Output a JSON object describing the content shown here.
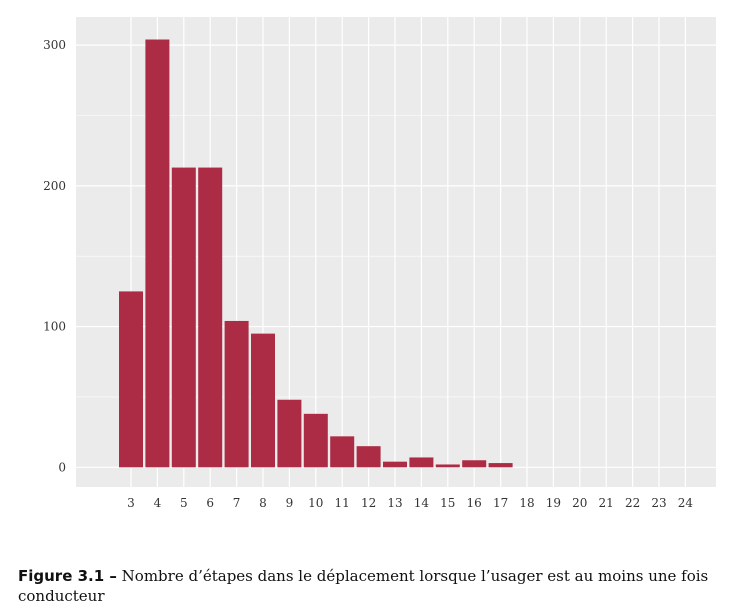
{
  "chart_data": {
    "type": "bar",
    "categories": [
      "3",
      "4",
      "5",
      "6",
      "7",
      "8",
      "9",
      "10",
      "11",
      "12",
      "13",
      "14",
      "15",
      "16",
      "17",
      "18",
      "19",
      "20",
      "21",
      "22",
      "23",
      "24"
    ],
    "values": [
      125,
      304,
      213,
      213,
      104,
      95,
      48,
      38,
      22,
      15,
      4,
      7,
      2,
      5,
      3,
      0,
      0,
      0,
      0,
      0,
      0,
      0
    ],
    "yticks": [
      0,
      100,
      200,
      300
    ],
    "ylim": [
      -14,
      320
    ],
    "grid": true,
    "title": "",
    "xlabel": "",
    "ylabel": "",
    "colors": {
      "bar": "#ac2c45",
      "panel": "#ebebeb",
      "grid": "#ffffff"
    }
  },
  "caption": {
    "label": "Figure 3.1 –",
    "text": " Nombre d’étapes dans le déplacement lorsque l’usager est au moins une fois conducteur"
  }
}
